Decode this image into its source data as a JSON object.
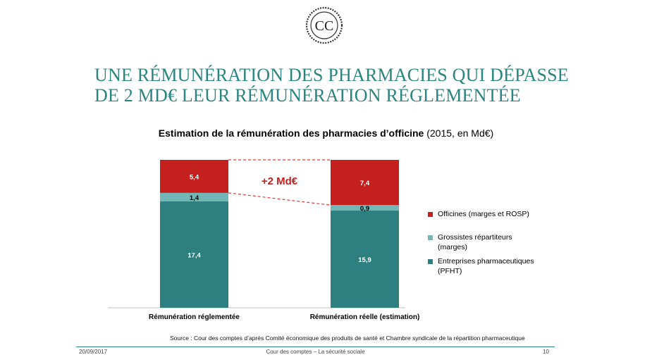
{
  "logo": {
    "letters": "CC",
    "icon": "cour-des-comptes-seal-icon"
  },
  "slide_title": {
    "line1": "UNE RÉMUNÉRATION DES PHARMACIES QUI DÉPASSE",
    "line2": "DE 2 MD€ LEUR RÉMUNÉRATION RÉGLEMENTÉE",
    "color": "#2a8580"
  },
  "chart_heading": {
    "bold": "Estimation de la rémunération des pharmacies d’officine",
    "normal": " (2015, en Md€)"
  },
  "chart_data": {
    "type": "bar",
    "stacked": true,
    "categories": [
      "Rémunération réglementée",
      "Rémunération réelle (estimation)"
    ],
    "series": [
      {
        "name": "Entreprises pharmaceutiques (PFHT)",
        "values": [
          17.4,
          15.9
        ],
        "labels": [
          "17,4",
          "15,9"
        ],
        "color": "#2e8080"
      },
      {
        "name": "Grossistes répartiteurs (marges)",
        "values": [
          1.4,
          0.9
        ],
        "labels": [
          "1,4",
          "0,9"
        ],
        "color": "#72b7b6"
      },
      {
        "name": "Officines (marges et ROSP)",
        "values": [
          5.4,
          7.4
        ],
        "labels": [
          "5,4",
          "7,4"
        ],
        "color": "#c4201e"
      }
    ],
    "annotation": "+2 Md€",
    "legend_position": "right",
    "grid": false
  },
  "legend_lines": [
    [
      "Officines (marges et ROSP)"
    ],
    [
      "Grossistes répartiteurs",
      "(marges)"
    ],
    [
      "Entreprises pharmaceutiques",
      "(PFHT)"
    ]
  ],
  "source": "Source : Cour des comptes d’après Comité économique des produits de santé et Chambre syndicale de la répartition pharmaceutique",
  "footer": {
    "date": "20/09/2017",
    "organisation": "Cour des comptes – La sécurité sociale",
    "page": "10"
  }
}
